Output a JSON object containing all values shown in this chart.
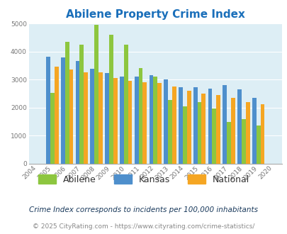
{
  "title": "Abilene Property Crime Index",
  "years": [
    2004,
    2005,
    2006,
    2007,
    2008,
    2009,
    2010,
    2011,
    2012,
    2013,
    2014,
    2015,
    2016,
    2017,
    2018,
    2019,
    2020
  ],
  "abilene": [
    0,
    2520,
    4350,
    4250,
    4950,
    4600,
    4250,
    3420,
    3100,
    2280,
    2050,
    2200,
    1980,
    1480,
    1580,
    1360,
    0
  ],
  "kansas": [
    0,
    3820,
    3780,
    3670,
    3380,
    3220,
    3100,
    3100,
    3150,
    3000,
    2720,
    2720,
    2680,
    2800,
    2640,
    2350,
    0
  ],
  "national": [
    0,
    3450,
    3350,
    3250,
    3250,
    3050,
    2960,
    2900,
    2880,
    2760,
    2590,
    2490,
    2450,
    2360,
    2200,
    2120,
    0
  ],
  "bar_colors": {
    "abilene": "#8dc63f",
    "kansas": "#4e8fcc",
    "national": "#f5a623"
  },
  "ylim": [
    0,
    5000
  ],
  "yticks": [
    0,
    1000,
    2000,
    3000,
    4000,
    5000
  ],
  "bg_color": "#ddeef5",
  "title_color": "#1a6fba",
  "legend_labels": [
    "Abilene",
    "Kansas",
    "National"
  ],
  "footnote1": "Crime Index corresponds to incidents per 100,000 inhabitants",
  "footnote2": "© 2025 CityRating.com - https://www.cityrating.com/crime-statistics/",
  "footnote1_color": "#1a3a5c",
  "footnote2_color": "#888888",
  "tick_color": "#777777"
}
